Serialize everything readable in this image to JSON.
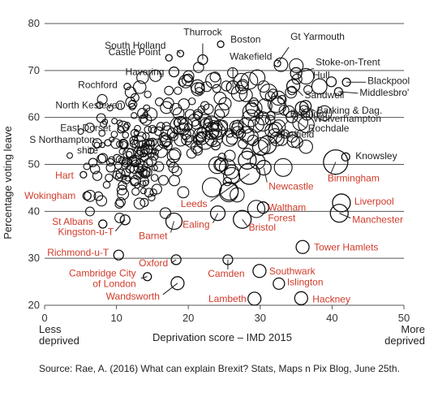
{
  "chart_data": {
    "type": "scatter",
    "title": "",
    "xlabel": "Deprivation score – IMD 2015",
    "ylabel": "Percentage voting leave",
    "xlim": [
      0,
      50
    ],
    "ylim": [
      20,
      80
    ],
    "x_ticks": [
      0,
      10,
      20,
      30,
      40,
      50
    ],
    "y_ticks": [
      20,
      30,
      40,
      50,
      60,
      70,
      80
    ],
    "grid": "horizontal",
    "x_left_note": "Less\ndeprived",
    "x_right_note": "More\ndeprived",
    "source": "Source: Rae, A. (2016) What can explain Brexit? Stats, Maps n Pix Blog, June 25th.",
    "colors": {
      "leave_label": "#222222",
      "remain_label": "#d03b2a",
      "circle": "#111111",
      "grid": "#555555"
    },
    "labelled_points": [
      {
        "name": "Thurrock",
        "x": 22.0,
        "y": 72.3,
        "size": 6,
        "color": "dark"
      },
      {
        "name": "Boston",
        "x": 24.5,
        "y": 75.6,
        "size": 4,
        "color": "dark"
      },
      {
        "name": "South Holland",
        "x": 18.9,
        "y": 73.6,
        "size": 4,
        "color": "dark"
      },
      {
        "name": "Castle Point",
        "x": 17.3,
        "y": 72.7,
        "size": 4,
        "color": "dark"
      },
      {
        "name": "Wakefield",
        "x": 26.2,
        "y": 66.4,
        "size": 8,
        "color": "dark"
      },
      {
        "name": "Gt Yarmouth",
        "x": 32.4,
        "y": 71.5,
        "size": 4,
        "color": "dark"
      },
      {
        "name": "Stoke-on-Trent",
        "x": 35.0,
        "y": 69.4,
        "size": 7,
        "color": "dark"
      },
      {
        "name": "Havering",
        "x": 18.0,
        "y": 69.7,
        "size": 6,
        "color": "dark"
      },
      {
        "name": "Rochford",
        "x": 11.5,
        "y": 66.6,
        "size": 4,
        "color": "dark"
      },
      {
        "name": "Hull",
        "x": 39.9,
        "y": 67.6,
        "size": 6,
        "color": "dark"
      },
      {
        "name": "Blackpool",
        "x": 42.0,
        "y": 67.5,
        "size": 5,
        "color": "dark"
      },
      {
        "name": "Middlesbro'",
        "x": 40.9,
        "y": 65.5,
        "size": 5,
        "color": "dark"
      },
      {
        "name": "Sandwell",
        "x": 34.6,
        "y": 66.7,
        "size": 8,
        "color": "dark"
      },
      {
        "name": "North Kesteven",
        "x": 12.2,
        "y": 62.3,
        "size": 4,
        "color": "dark"
      },
      {
        "name": "Barking & Dag.",
        "x": 36.3,
        "y": 62.4,
        "size": 7,
        "color": "dark"
      },
      {
        "name": "Wolverhampton",
        "x": 35.8,
        "y": 62.0,
        "size": 8,
        "color": "dark"
      },
      {
        "name": "Rochdale",
        "x": 34.4,
        "y": 60.1,
        "size": 7,
        "color": "dark"
      },
      {
        "name": "East Dorset",
        "x": 10.6,
        "y": 57.4,
        "size": 4,
        "color": "dark"
      },
      {
        "name": "Bradford",
        "x": 31.0,
        "y": 54.2,
        "size": 11,
        "color": "dark"
      },
      {
        "name": "Sheffield",
        "x": 28.2,
        "y": 50.9,
        "size": 11,
        "color": "dark"
      },
      {
        "name": "S Northampton-\nshire",
        "x": 8.8,
        "y": 54.6,
        "size": 4,
        "color": "dark"
      },
      {
        "name": "Knowsley",
        "x": 41.9,
        "y": 51.6,
        "size": 5,
        "color": "dark"
      },
      {
        "name": "Hart",
        "x": 5.4,
        "y": 47.8,
        "size": 4,
        "color": "red"
      },
      {
        "name": "Birmingham",
        "x": 40.5,
        "y": 50.5,
        "size": 15,
        "color": "red"
      },
      {
        "name": "Wokingham",
        "x": 5.9,
        "y": 43.3,
        "size": 5,
        "color": "red"
      },
      {
        "name": "Newcastle",
        "x": 30.5,
        "y": 49.3,
        "size": 9,
        "color": "red"
      },
      {
        "name": "Leeds",
        "x": 28.5,
        "y": 48.0,
        "size": 13,
        "color": "red"
      },
      {
        "name": "Liverpool",
        "x": 41.3,
        "y": 41.8,
        "size": 11,
        "color": "red"
      },
      {
        "name": "Waltham\nForest",
        "x": 30.4,
        "y": 40.8,
        "size": 7,
        "color": "red"
      },
      {
        "name": "Manchester",
        "x": 41.0,
        "y": 39.6,
        "size": 11,
        "color": "red"
      },
      {
        "name": "Ealing",
        "x": 24.1,
        "y": 39.6,
        "size": 9,
        "color": "red"
      },
      {
        "name": "Bristol",
        "x": 27.5,
        "y": 38.3,
        "size": 11,
        "color": "red"
      },
      {
        "name": "St Albans",
        "x": 8.1,
        "y": 37.3,
        "size": 5,
        "color": "red"
      },
      {
        "name": "Kingston-u-T",
        "x": 11.2,
        "y": 38.2,
        "size": 6,
        "color": "red"
      },
      {
        "name": "Barnet",
        "x": 18.0,
        "y": 37.9,
        "size": 10,
        "color": "red"
      },
      {
        "name": "Tower Hamlets",
        "x": 35.9,
        "y": 32.4,
        "size": 8,
        "color": "red"
      },
      {
        "name": "Richmond-u-T",
        "x": 10.3,
        "y": 30.7,
        "size": 6,
        "color": "red"
      },
      {
        "name": "Oxford",
        "x": 18.3,
        "y": 29.7,
        "size": 6,
        "color": "red"
      },
      {
        "name": "Camden",
        "x": 25.5,
        "y": 29.7,
        "size": 6,
        "color": "red"
      },
      {
        "name": "Southwark",
        "x": 29.9,
        "y": 27.3,
        "size": 8,
        "color": "red"
      },
      {
        "name": "Cambridge City\nof London",
        "x": 14.3,
        "y": 26.1,
        "size": 5,
        "color": "red"
      },
      {
        "name": "Islington",
        "x": 32.6,
        "y": 24.6,
        "size": 7,
        "color": "red"
      },
      {
        "name": "Wandsworth",
        "x": 18.5,
        "y": 24.7,
        "size": 8,
        "color": "red"
      },
      {
        "name": "Lambeth",
        "x": 29.2,
        "y": 21.4,
        "size": 8,
        "color": "red"
      },
      {
        "name": "Hackney",
        "x": 35.7,
        "y": 21.5,
        "size": 8,
        "color": "red"
      }
    ]
  }
}
